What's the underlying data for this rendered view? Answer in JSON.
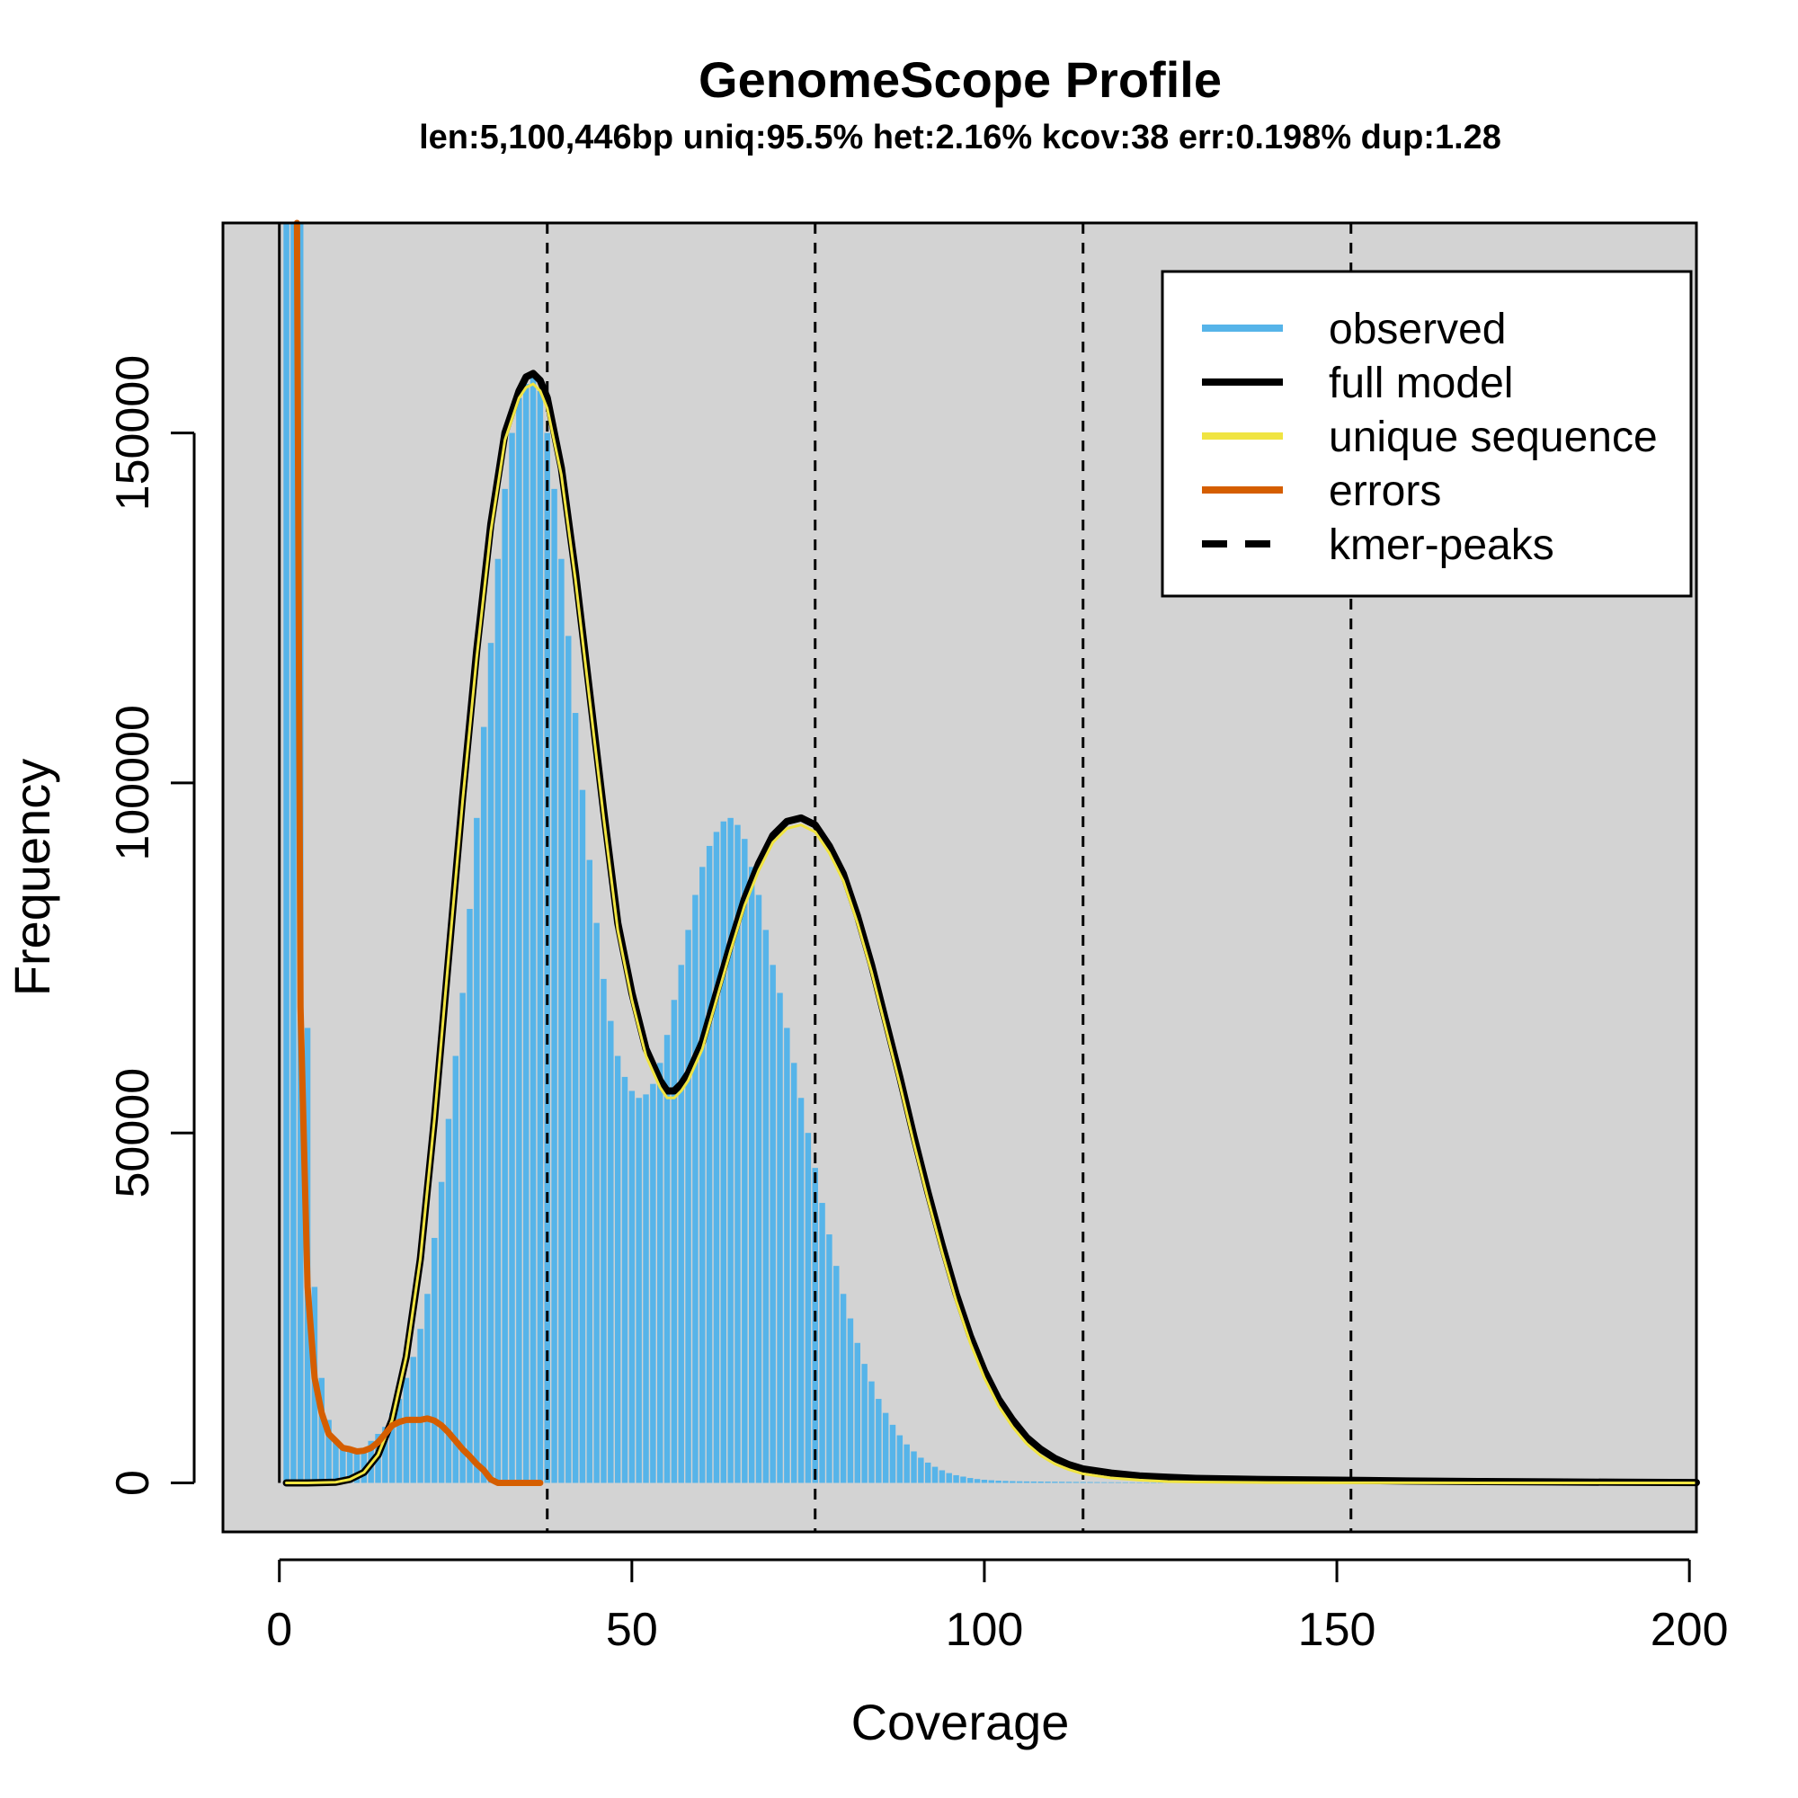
{
  "chart_data": {
    "type": "line",
    "title": "GenomeScope Profile",
    "subtitle": "len:5,100,446bp uniq:95.5% het:2.16% kcov:38 err:0.198% dup:1.28",
    "xlabel": "Coverage",
    "ylabel": "Frequency",
    "xlim": [
      -8,
      201
    ],
    "ylim": [
      -7000,
      180000
    ],
    "x_ticks": [
      0,
      50,
      100,
      150,
      200
    ],
    "x_tick_labels": [
      "0",
      "50",
      "100",
      "150",
      "200"
    ],
    "y_ticks": [
      0,
      50000,
      100000,
      150000
    ],
    "y_tick_labels": [
      "0",
      "50000",
      "100000",
      "150000"
    ],
    "background": "#d3d3d3",
    "legend_position": "top-right",
    "legend": [
      {
        "label": "observed",
        "color": "#56B4E9",
        "style": "solid"
      },
      {
        "label": "full model",
        "color": "#000000",
        "style": "solid"
      },
      {
        "label": "unique sequence",
        "color": "#F0E442",
        "style": "solid"
      },
      {
        "label": "errors",
        "color": "#D55E00",
        "style": "solid"
      },
      {
        "label": "kmer-peaks",
        "color": "#000000",
        "style": "dashed"
      }
    ],
    "kmer_peaks": [
      38,
      76,
      114,
      152
    ],
    "observed": {
      "x": [
        1,
        2,
        3,
        4,
        5,
        6,
        7,
        8,
        9,
        10,
        11,
        12,
        13,
        14,
        15,
        16,
        17,
        18,
        19,
        20,
        21,
        22,
        23,
        24,
        25,
        26,
        27,
        28,
        29,
        30,
        31,
        32,
        33,
        34,
        35,
        36,
        37,
        38,
        39,
        40,
        41,
        42,
        43,
        44,
        45,
        46,
        47,
        48,
        49,
        50,
        51,
        52,
        53,
        54,
        55,
        56,
        57,
        58,
        59,
        60,
        61,
        62,
        63,
        64,
        65,
        66,
        67,
        68,
        69,
        70,
        71,
        72,
        73,
        74,
        75,
        76,
        77,
        78,
        79,
        80,
        81,
        82,
        83,
        84,
        85,
        86,
        87,
        88,
        89,
        90,
        91,
        92,
        93,
        94,
        95,
        96,
        97,
        98,
        99,
        100,
        101,
        102,
        103,
        104,
        105,
        106,
        107,
        108,
        109,
        110,
        111,
        112,
        113,
        114,
        115,
        116,
        117,
        118,
        119,
        120,
        121,
        122,
        123,
        124,
        125,
        126,
        127,
        128,
        129,
        130
      ],
      "y": [
        180000,
        180000,
        180000,
        65000,
        28000,
        15000,
        9000,
        6000,
        5000,
        4500,
        4500,
        5000,
        6000,
        7000,
        8000,
        10000,
        12000,
        15000,
        18000,
        22000,
        27000,
        35000,
        43000,
        52000,
        61000,
        70000,
        82000,
        95000,
        108000,
        120000,
        132000,
        142000,
        150000,
        155000,
        157000,
        158000,
        156000,
        150000,
        142000,
        132000,
        121000,
        110000,
        99000,
        89000,
        80000,
        72000,
        66000,
        61000,
        58000,
        56000,
        55000,
        55500,
        57000,
        60000,
        64000,
        69000,
        74000,
        79000,
        84000,
        88000,
        91000,
        93000,
        94500,
        95000,
        94000,
        92000,
        88000,
        84000,
        79000,
        74000,
        70000,
        65000,
        60000,
        55000,
        50000,
        45000,
        40000,
        35500,
        31000,
        27000,
        23500,
        20000,
        17000,
        14500,
        12000,
        10000,
        8300,
        6800,
        5500,
        4500,
        3600,
        2900,
        2300,
        1800,
        1400,
        1100,
        900,
        700,
        550,
        450,
        380,
        320,
        280,
        250,
        230,
        210,
        200,
        190,
        180,
        170,
        160,
        150,
        140,
        130,
        120,
        110,
        100,
        95,
        90,
        85,
        80,
        75,
        70,
        65,
        60,
        55,
        50,
        45,
        40,
        35
      ]
    },
    "full_model": {
      "x": [
        1,
        4,
        8,
        10,
        12,
        14,
        16,
        18,
        20,
        22,
        24,
        26,
        28,
        30,
        32,
        34,
        35,
        36,
        37,
        38,
        40,
        42,
        44,
        46,
        48,
        50,
        52,
        54,
        55,
        56,
        57,
        58,
        60,
        62,
        64,
        66,
        68,
        70,
        72,
        74,
        76,
        78,
        80,
        82,
        84,
        86,
        88,
        90,
        92,
        94,
        96,
        98,
        100,
        102,
        104,
        106,
        108,
        110,
        112,
        114,
        118,
        122,
        126,
        130,
        140,
        150,
        160,
        170,
        180,
        190,
        201
      ],
      "y": [
        0,
        0,
        100,
        500,
        1500,
        4000,
        9000,
        18000,
        32000,
        52000,
        75000,
        98000,
        119000,
        137000,
        150000,
        156000,
        158000,
        158500,
        157500,
        155000,
        145000,
        130000,
        113000,
        96000,
        80000,
        70000,
        62000,
        57500,
        56000,
        56000,
        57000,
        58500,
        63000,
        70000,
        77000,
        83500,
        88500,
        92500,
        94500,
        95000,
        94000,
        91000,
        87000,
        81000,
        74000,
        66000,
        58000,
        49500,
        41500,
        34000,
        27000,
        21000,
        16000,
        12000,
        9000,
        6500,
        4800,
        3500,
        2600,
        2000,
        1400,
        1000,
        800,
        650,
        480,
        380,
        280,
        200,
        140,
        90,
        50
      ]
    },
    "unique_sequence": {
      "x": [
        1,
        4,
        8,
        10,
        12,
        14,
        16,
        18,
        20,
        22,
        24,
        26,
        28,
        30,
        32,
        34,
        35,
        36,
        37,
        38,
        40,
        42,
        44,
        46,
        48,
        50,
        52,
        54,
        55,
        56,
        57,
        58,
        60,
        62,
        64,
        66,
        68,
        70,
        72,
        74,
        76,
        78,
        80,
        82,
        84,
        86,
        88,
        90,
        92,
        94,
        96,
        98,
        100,
        102,
        104,
        106,
        108,
        110,
        112,
        114,
        118,
        122,
        126,
        130,
        140,
        150,
        160,
        170,
        180,
        190,
        201
      ],
      "y": [
        0,
        0,
        100,
        500,
        1500,
        4000,
        9000,
        18000,
        32000,
        52000,
        75000,
        97500,
        118000,
        136000,
        149000,
        155000,
        156500,
        157000,
        156000,
        153500,
        144000,
        129000,
        112000,
        95000,
        79000,
        69000,
        61000,
        56500,
        55000,
        55000,
        56000,
        57500,
        62000,
        69000,
        76000,
        82500,
        87500,
        91500,
        93500,
        94000,
        93000,
        90000,
        86000,
        80000,
        73000,
        65000,
        57000,
        48500,
        40500,
        33000,
        26000,
        20000,
        15000,
        11000,
        8000,
        5600,
        3900,
        2700,
        1900,
        1300,
        700,
        400,
        200,
        120,
        50,
        20,
        10,
        5,
        0,
        0,
        0
      ]
    },
    "errors": {
      "x": [
        2.5,
        3,
        4,
        5,
        6,
        7,
        8,
        9,
        10,
        11,
        12,
        13,
        14,
        15,
        16,
        17,
        18,
        19,
        20,
        21,
        22,
        23,
        24,
        25,
        26,
        27,
        28,
        29,
        30,
        31,
        32,
        33,
        34,
        35,
        36,
        37
      ],
      "y": [
        180000,
        68000,
        28000,
        15000,
        10000,
        7000,
        6000,
        5000,
        4800,
        4500,
        4600,
        5000,
        5800,
        7000,
        8200,
        8700,
        9000,
        9000,
        9000,
        9200,
        8900,
        8200,
        7200,
        6000,
        4800,
        3800,
        2700,
        1800,
        500,
        0,
        0,
        0,
        0,
        0,
        0,
        0
      ]
    }
  }
}
